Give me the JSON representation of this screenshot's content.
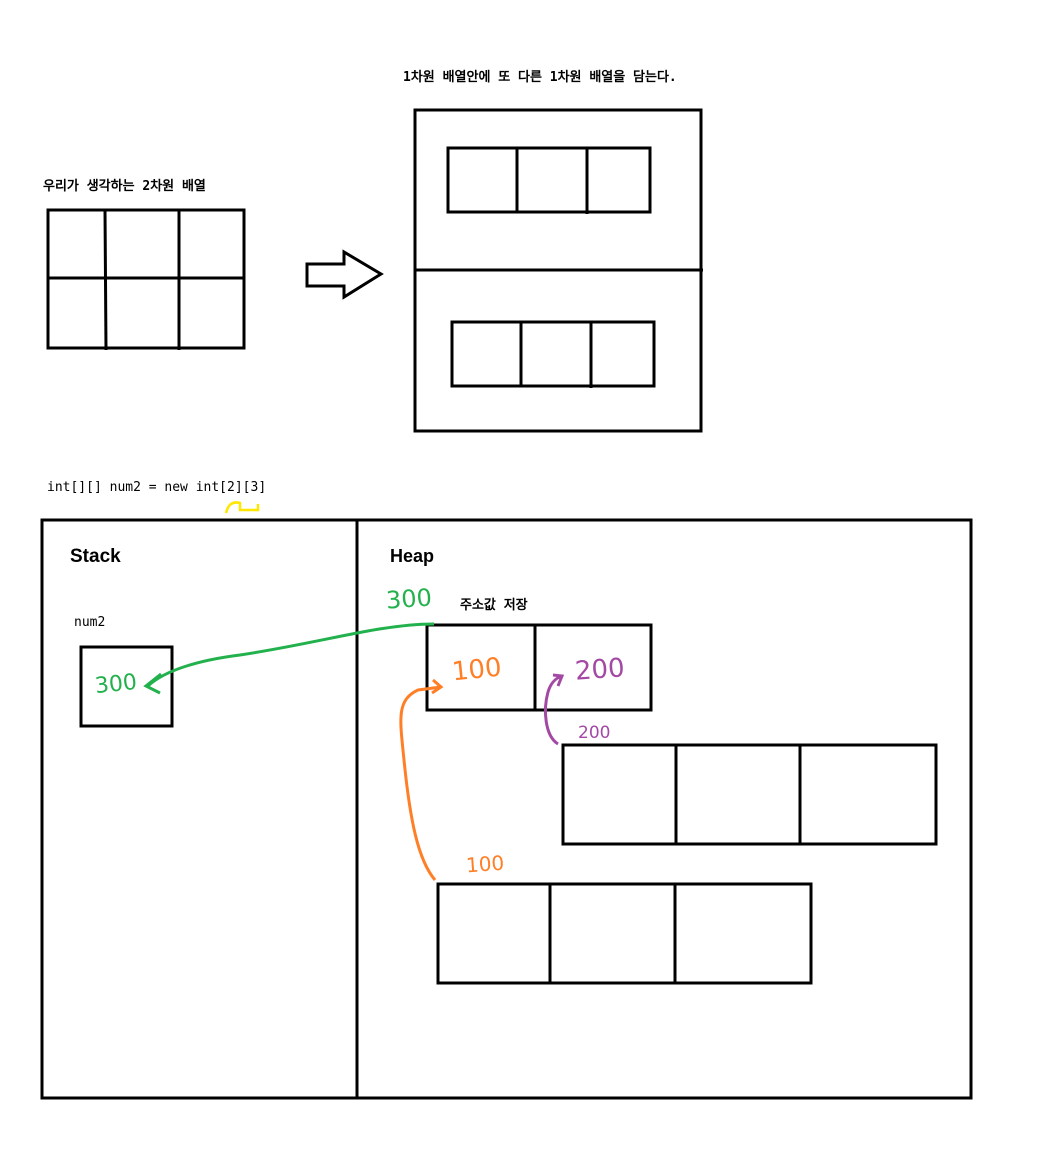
{
  "left_title": "우리가 생각하는 2차원 배열",
  "right_title": "1차원 배열안에 또 다른 1차원 배열을 담는다.",
  "code_line": "int[][] num2 = new int[2][3]",
  "stack": {
    "title": "Stack",
    "var_name": "num2",
    "value": "300"
  },
  "heap": {
    "title": "Heap",
    "address_note": "주소값 저장",
    "outer_address": "300",
    "cell_values": [
      "100",
      "200"
    ],
    "row_addresses": [
      "200",
      "100"
    ]
  }
}
